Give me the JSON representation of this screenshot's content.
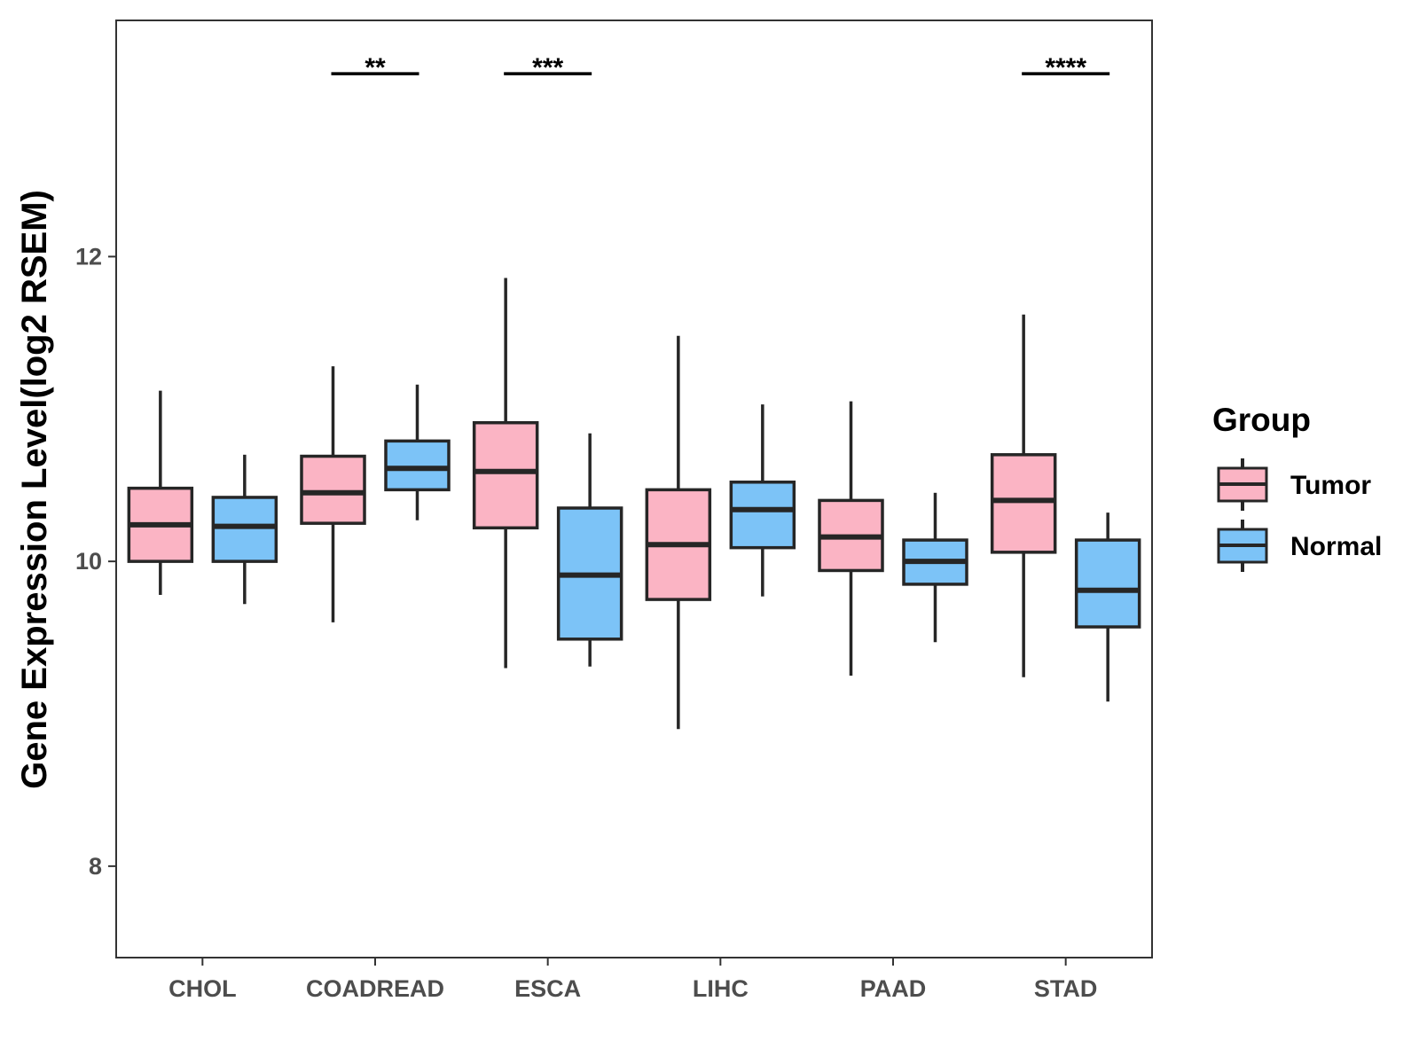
{
  "chart_data": {
    "type": "boxplot",
    "ylabel": "Gene Expression Level(log2 RSEM)",
    "xlabel": "",
    "ylim": [
      7.4,
      13.55
    ],
    "yticks": [
      8,
      10,
      12
    ],
    "grid": false,
    "legend": {
      "title": "Group",
      "position": "right",
      "entries": [
        {
          "name": "Tumor",
          "color": "#fbb4c4"
        },
        {
          "name": "Normal",
          "color": "#7cc3f7"
        }
      ]
    },
    "groups": [
      "Tumor",
      "Normal"
    ],
    "colors": {
      "Tumor": "#fbb4c4",
      "Normal": "#7cc3f7",
      "outline": "#262626"
    },
    "categories": [
      {
        "name": "CHOL",
        "boxes": [
          {
            "group": "Tumor",
            "whisker_low": 9.78,
            "q1": 10.0,
            "median": 10.24,
            "q3": 10.48,
            "whisker_high": 11.12
          },
          {
            "group": "Normal",
            "whisker_low": 9.72,
            "q1": 10.0,
            "median": 10.23,
            "q3": 10.42,
            "whisker_high": 10.7
          }
        ]
      },
      {
        "name": "COADREAD",
        "boxes": [
          {
            "group": "Tumor",
            "whisker_low": 9.6,
            "q1": 10.25,
            "median": 10.45,
            "q3": 10.69,
            "whisker_high": 11.28
          },
          {
            "group": "Normal",
            "whisker_low": 10.27,
            "q1": 10.47,
            "median": 10.61,
            "q3": 10.79,
            "whisker_high": 11.16
          }
        ]
      },
      {
        "name": "ESCA",
        "boxes": [
          {
            "group": "Tumor",
            "whisker_low": 9.3,
            "q1": 10.22,
            "median": 10.59,
            "q3": 10.91,
            "whisker_high": 11.86
          },
          {
            "group": "Normal",
            "whisker_low": 9.31,
            "q1": 9.49,
            "median": 9.91,
            "q3": 10.35,
            "whisker_high": 10.84
          }
        ]
      },
      {
        "name": "LIHC",
        "boxes": [
          {
            "group": "Tumor",
            "whisker_low": 8.9,
            "q1": 9.75,
            "median": 10.11,
            "q3": 10.47,
            "whisker_high": 11.48
          },
          {
            "group": "Normal",
            "whisker_low": 9.77,
            "q1": 10.09,
            "median": 10.34,
            "q3": 10.52,
            "whisker_high": 11.03
          }
        ]
      },
      {
        "name": "PAAD",
        "boxes": [
          {
            "group": "Tumor",
            "whisker_low": 9.25,
            "q1": 9.94,
            "median": 10.16,
            "q3": 10.4,
            "whisker_high": 11.05
          },
          {
            "group": "Normal",
            "whisker_low": 9.47,
            "q1": 9.85,
            "median": 10.0,
            "q3": 10.14,
            "whisker_high": 10.45
          }
        ]
      },
      {
        "name": "STAD",
        "boxes": [
          {
            "group": "Tumor",
            "whisker_low": 9.24,
            "q1": 10.06,
            "median": 10.4,
            "q3": 10.7,
            "whisker_high": 11.62
          },
          {
            "group": "Normal",
            "whisker_low": 9.08,
            "q1": 9.57,
            "median": 9.81,
            "q3": 10.14,
            "whisker_high": 10.32
          }
        ]
      }
    ],
    "annotations": [
      {
        "category": "COADREAD",
        "label": "**",
        "y": 13.2
      },
      {
        "category": "ESCA",
        "label": "***",
        "y": 13.2
      },
      {
        "category": "STAD",
        "label": "****",
        "y": 13.2
      }
    ]
  }
}
